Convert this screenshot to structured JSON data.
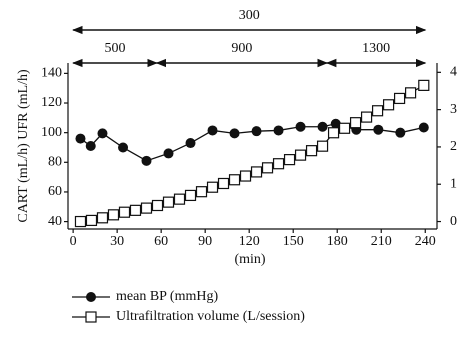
{
  "chart_data": {
    "type": "line",
    "y_label": "CART (mL/h) UFR (mL/h)",
    "x_label": "(min)",
    "xlim": [
      -3.5,
      248
    ],
    "xticks": [
      0,
      30,
      60,
      90,
      120,
      150,
      180,
      210,
      240
    ],
    "ylim": [
      35,
      147
    ],
    "yticks": [
      40,
      60,
      80,
      100,
      120,
      140
    ],
    "y2lim": [
      -0.2,
      4.25
    ],
    "y2ticks": [
      0,
      1,
      2,
      3,
      4
    ],
    "annotations": [
      {
        "label": "300",
        "from": 0,
        "to": 240,
        "row": "upper"
      },
      {
        "label": "500",
        "from": 0,
        "to": 57,
        "row": "lower"
      },
      {
        "label": "900",
        "from": 57,
        "to": 173,
        "row": "lower"
      },
      {
        "label": "1300",
        "from": 173,
        "to": 240,
        "row": "lower"
      }
    ],
    "series": [
      {
        "name": "mean BP (mmHg)",
        "color": "#111111",
        "marker": "circle",
        "x": [
          5,
          12,
          20,
          34,
          50,
          65,
          80,
          95,
          110,
          125,
          140,
          155,
          170,
          179,
          193,
          208,
          223,
          239
        ],
        "values": [
          96,
          91,
          99.5,
          90,
          81,
          86,
          93,
          101.5,
          99.5,
          101,
          101.5,
          104,
          104,
          106,
          102,
          102,
          100,
          103.5
        ]
      },
      {
        "name": "Ultrafiltration volume (L/session)",
        "color": "#111111",
        "marker": "square",
        "axis": "y2",
        "x": [
          5,
          12.5,
          20,
          27.5,
          35,
          42.5,
          50,
          57.5,
          65,
          72.5,
          80,
          87.5,
          95,
          102.5,
          110,
          117.5,
          125,
          132.5,
          140,
          147.5,
          155,
          162.5,
          170,
          177.5,
          185,
          192.5,
          200,
          207.5,
          215,
          222.5,
          230,
          239
        ],
        "values": [
          0,
          0.03,
          0.1,
          0.18,
          0.25,
          0.3,
          0.36,
          0.43,
          0.52,
          0.6,
          0.7,
          0.8,
          0.92,
          1.02,
          1.12,
          1.22,
          1.33,
          1.44,
          1.55,
          1.66,
          1.78,
          1.9,
          2.02,
          2.38,
          2.5,
          2.65,
          2.8,
          2.97,
          3.13,
          3.3,
          3.45,
          3.65
        ]
      }
    ]
  }
}
